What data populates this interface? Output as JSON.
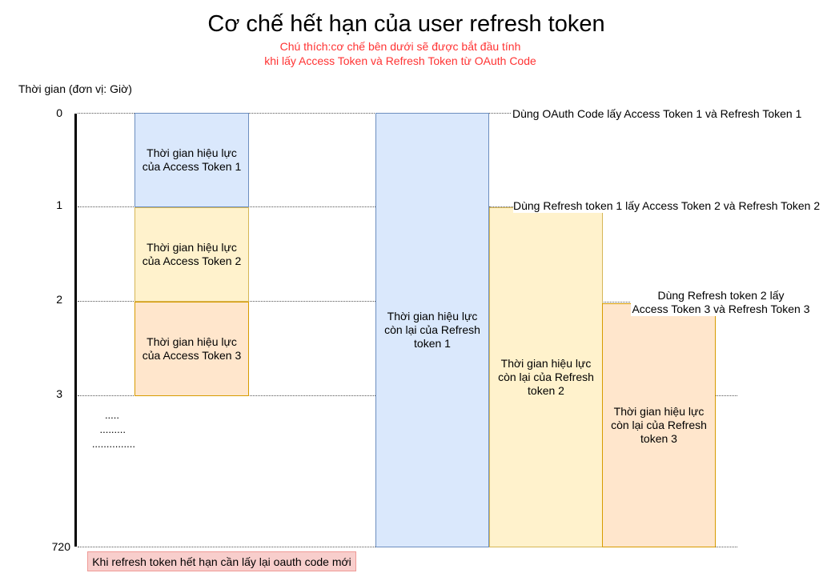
{
  "title": "Cơ chế hết hạn của user refresh token",
  "note": {
    "line1": "Chú thích:cơ chế bên dưới sẽ được bắt đầu tính",
    "line2": "khi lấy Access Token và Refresh Token từ OAuth Code"
  },
  "axis": {
    "label": "Thời gian (đơn vị: Giờ)",
    "ticks": [
      "0",
      "1",
      "2",
      "3",
      "720"
    ],
    "ellipsis": [
      ".....",
      ".........",
      "..............."
    ]
  },
  "access_tokens": [
    {
      "label": "Thời gian hiệu lực của Access Token 1"
    },
    {
      "label": "Thời gian hiệu lực của Access Token 2"
    },
    {
      "label": "Thời gian hiệu lực của Access Token 3"
    }
  ],
  "refresh_tokens": [
    {
      "label": "Thời gian hiệu lực còn lại của Refresh token 1"
    },
    {
      "label": "Thời gian hiệu lực còn lại của Refresh token 2"
    },
    {
      "label": "Thời gian hiệu lực còn lại của Refresh token 3"
    }
  ],
  "annotations": {
    "a1": "Dùng OAuth Code lấy Access Token 1 và Refresh Token 1",
    "a2": "Dùng Refresh token 1 lấy Access Token 2 và Refresh Token 2",
    "a3_line1": "Dùng Refresh token 2 lấy",
    "a3_line2": "Access Token 3 và Refresh Token 3"
  },
  "expire_note": "Khi refresh token hết hạn cần lấy lại oauth code mới",
  "colors": {
    "blue_fill": "#dae8fc",
    "yellow_fill": "#fff2cc",
    "orange_fill": "#ffe6cc",
    "note_red": "#ff3333",
    "expire_fill": "#f8cecc"
  }
}
